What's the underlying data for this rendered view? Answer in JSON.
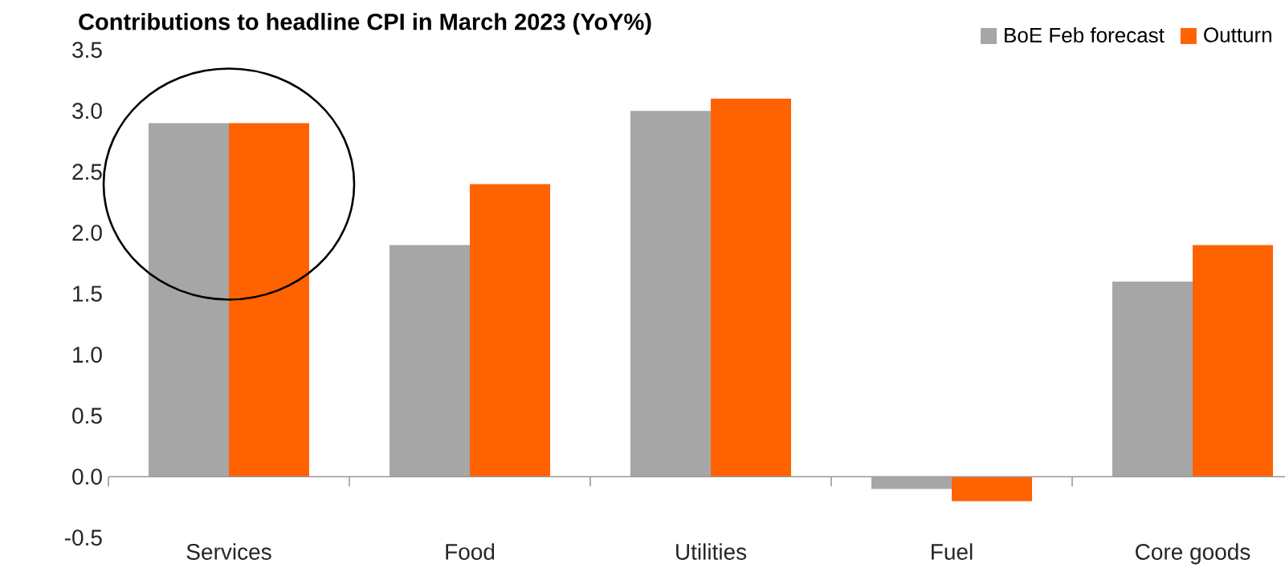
{
  "chart_data": {
    "type": "bar",
    "title": "**Contributions to headline CPI in March 2023 (YoY%)**",
    "categories": [
      "Services",
      "Food",
      "Utilities",
      "Fuel",
      "Core goods"
    ],
    "series": [
      {
        "name": "BoE Feb forecast",
        "color": "#a6a6a6",
        "values": [
          2.9,
          1.9,
          3.0,
          -0.1,
          1.6
        ]
      },
      {
        "name": "Outturn",
        "color": "#ff6200",
        "values": [
          2.9,
          2.4,
          3.1,
          -0.2,
          1.9
        ]
      }
    ],
    "ylim": [
      -0.5,
      3.5
    ],
    "yticks": [
      -0.5,
      {
        "value": 0,
        "label": "0.0"
      },
      0.5,
      {
        "value": 1,
        "label": "1.0"
      },
      1.5,
      {
        "value": 2,
        "label": "2.0"
      },
      2.5,
      {
        "value": 3,
        "label": "3.0"
      },
      3.5
    ],
    "legend": "top right"
  }
}
